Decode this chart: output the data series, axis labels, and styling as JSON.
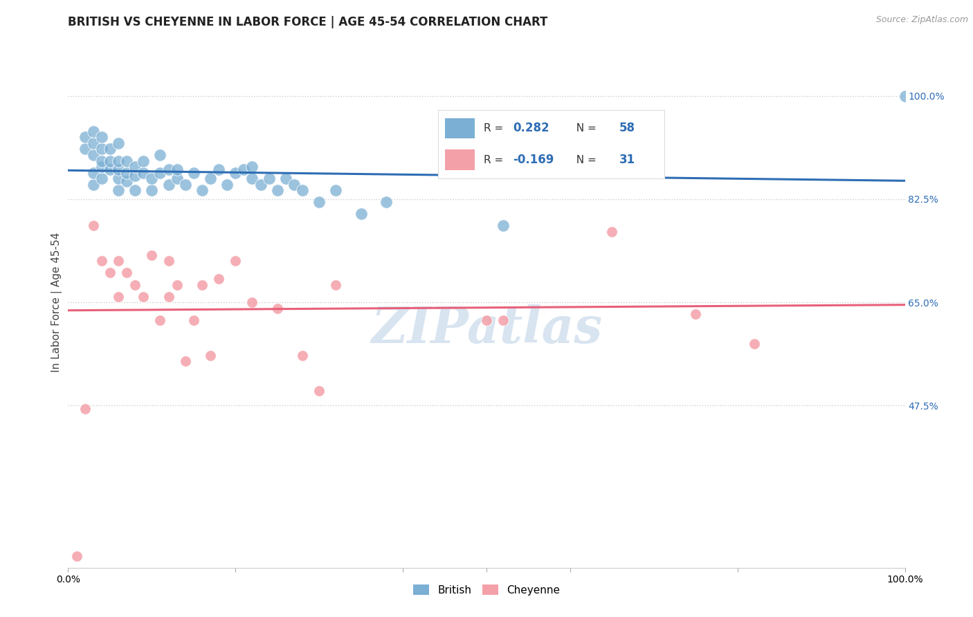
{
  "title": "BRITISH VS CHEYENNE IN LABOR FORCE | AGE 45-54 CORRELATION CHART",
  "source_text": "Source: ZipAtlas.com",
  "ylabel": "In Labor Force | Age 45-54",
  "xlim": [
    0.0,
    1.0
  ],
  "ylim": [
    0.2,
    1.1
  ],
  "yticks": [
    0.475,
    0.65,
    0.825,
    1.0
  ],
  "ytick_labels": [
    "47.5%",
    "65.0%",
    "82.5%",
    "100.0%"
  ],
  "legend_r_british": "0.282",
  "legend_n_british": "58",
  "legend_r_cheyenne": "-0.169",
  "legend_n_cheyenne": "31",
  "british_color": "#7BAFD4",
  "cheyenne_color": "#F4A0A8",
  "trend_british_color": "#2E6DB4",
  "trend_cheyenne_color": "#E8607A",
  "watermark_color": "#D8E4F0",
  "watermark": "ZIPatlas",
  "british_x": [
    0.02,
    0.02,
    0.03,
    0.03,
    0.03,
    0.03,
    0.03,
    0.04,
    0.04,
    0.04,
    0.04,
    0.04,
    0.05,
    0.05,
    0.05,
    0.06,
    0.06,
    0.06,
    0.06,
    0.06,
    0.07,
    0.07,
    0.07,
    0.08,
    0.08,
    0.08,
    0.09,
    0.09,
    0.1,
    0.1,
    0.11,
    0.11,
    0.12,
    0.12,
    0.13,
    0.13,
    0.14,
    0.15,
    0.16,
    0.17,
    0.18,
    0.19,
    0.2,
    0.21,
    0.22,
    0.22,
    0.23,
    0.24,
    0.25,
    0.26,
    0.27,
    0.28,
    0.3,
    0.32,
    0.35,
    0.38,
    0.52,
    1.0
  ],
  "british_y": [
    0.91,
    0.93,
    0.85,
    0.87,
    0.9,
    0.92,
    0.94,
    0.86,
    0.88,
    0.89,
    0.91,
    0.93,
    0.875,
    0.89,
    0.91,
    0.84,
    0.86,
    0.875,
    0.89,
    0.92,
    0.855,
    0.87,
    0.89,
    0.84,
    0.865,
    0.88,
    0.87,
    0.89,
    0.84,
    0.86,
    0.87,
    0.9,
    0.85,
    0.875,
    0.86,
    0.875,
    0.85,
    0.87,
    0.84,
    0.86,
    0.875,
    0.85,
    0.87,
    0.875,
    0.86,
    0.88,
    0.85,
    0.86,
    0.84,
    0.86,
    0.85,
    0.84,
    0.82,
    0.84,
    0.8,
    0.82,
    0.78,
    1.0
  ],
  "cheyenne_x": [
    0.01,
    0.02,
    0.03,
    0.04,
    0.05,
    0.06,
    0.06,
    0.07,
    0.08,
    0.09,
    0.1,
    0.11,
    0.12,
    0.12,
    0.13,
    0.14,
    0.15,
    0.16,
    0.17,
    0.18,
    0.2,
    0.22,
    0.25,
    0.28,
    0.3,
    0.32,
    0.5,
    0.52,
    0.65,
    0.75,
    0.82
  ],
  "cheyenne_y": [
    0.22,
    0.47,
    0.78,
    0.72,
    0.7,
    0.66,
    0.72,
    0.7,
    0.68,
    0.66,
    0.73,
    0.62,
    0.66,
    0.72,
    0.68,
    0.55,
    0.62,
    0.68,
    0.56,
    0.69,
    0.72,
    0.65,
    0.64,
    0.56,
    0.5,
    0.68,
    0.62,
    0.62,
    0.77,
    0.63,
    0.58
  ],
  "dot_size_british": 160,
  "dot_size_cheyenne": 130,
  "background_color": "#FFFFFF",
  "grid_color": "#CCCCCC",
  "title_fontsize": 12,
  "axis_label_fontsize": 11,
  "tick_fontsize": 10,
  "legend_fontsize": 11
}
